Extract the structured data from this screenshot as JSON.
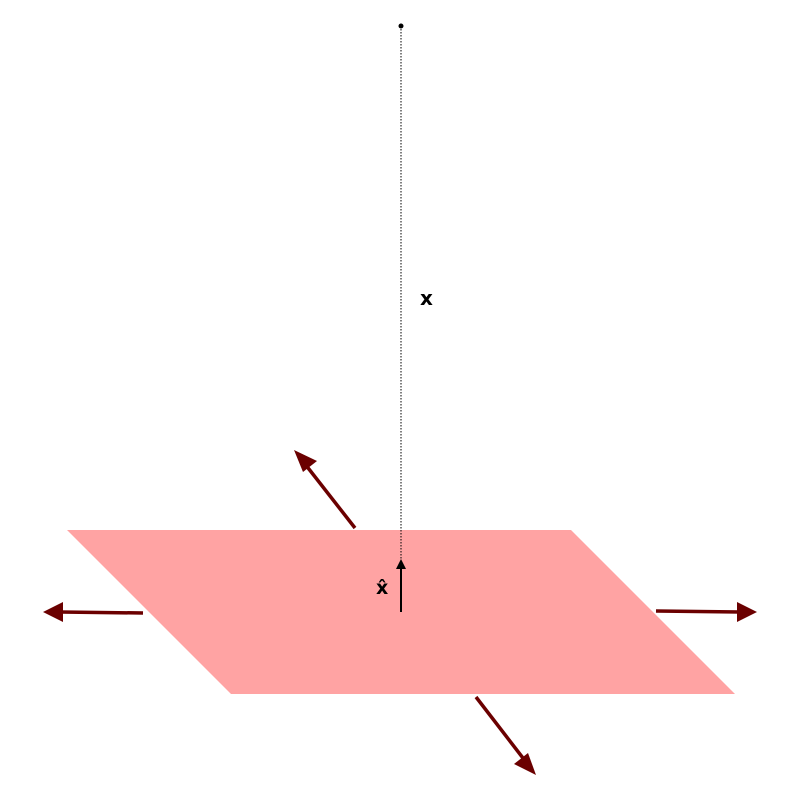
{
  "labels": {
    "vector": "x",
    "unit_vector": "x̂"
  },
  "colors": {
    "plane": "#ffa3a3",
    "arrows": "#6b0000",
    "lines": "#000000"
  }
}
